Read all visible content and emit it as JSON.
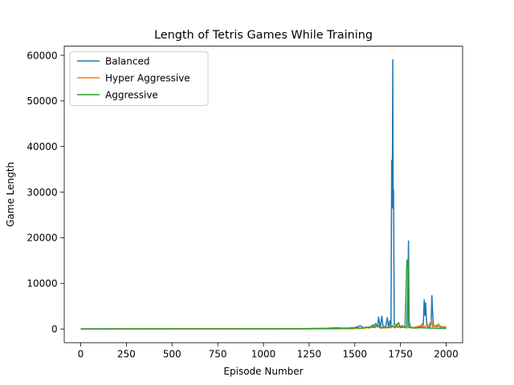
{
  "chart_data": {
    "type": "line",
    "title": "Length of Tetris Games While Training",
    "xlabel": "Episode Number",
    "ylabel": "Game Length",
    "xlim": [
      -90,
      2090
    ],
    "ylim": [
      -3000,
      62000
    ],
    "x_ticks": [
      0,
      250,
      500,
      750,
      1000,
      1250,
      1500,
      1750,
      2000
    ],
    "y_ticks": [
      0,
      10000,
      20000,
      30000,
      40000,
      50000,
      60000
    ],
    "grid": false,
    "legend_position": "top-left",
    "series": [
      {
        "name": "Balanced",
        "color": "#1f77b4",
        "points": [
          [
            0,
            20
          ],
          [
            300,
            30
          ],
          [
            600,
            40
          ],
          [
            900,
            50
          ],
          [
            1200,
            80
          ],
          [
            1350,
            150
          ],
          [
            1400,
            250
          ],
          [
            1450,
            150
          ],
          [
            1500,
            300
          ],
          [
            1530,
            700
          ],
          [
            1550,
            200
          ],
          [
            1580,
            500
          ],
          [
            1600,
            300
          ],
          [
            1615,
            1200
          ],
          [
            1625,
            400
          ],
          [
            1630,
            2600
          ],
          [
            1640,
            300
          ],
          [
            1648,
            2800
          ],
          [
            1655,
            400
          ],
          [
            1670,
            600
          ],
          [
            1678,
            2500
          ],
          [
            1685,
            300
          ],
          [
            1692,
            1800
          ],
          [
            1698,
            500
          ],
          [
            1702,
            37000
          ],
          [
            1705,
            26500
          ],
          [
            1708,
            59000
          ],
          [
            1710,
            27000
          ],
          [
            1712,
            30500
          ],
          [
            1716,
            1200
          ],
          [
            1722,
            800
          ],
          [
            1730,
            400
          ],
          [
            1745,
            600
          ],
          [
            1755,
            300
          ],
          [
            1770,
            500
          ],
          [
            1785,
            300
          ],
          [
            1790,
            9000
          ],
          [
            1794,
            19300
          ],
          [
            1797,
            1500
          ],
          [
            1805,
            400
          ],
          [
            1820,
            300
          ],
          [
            1840,
            500
          ],
          [
            1860,
            400
          ],
          [
            1875,
            800
          ],
          [
            1880,
            6400
          ],
          [
            1884,
            3000
          ],
          [
            1888,
            5700
          ],
          [
            1892,
            2000
          ],
          [
            1897,
            500
          ],
          [
            1910,
            300
          ],
          [
            1918,
            1500
          ],
          [
            1922,
            7300
          ],
          [
            1925,
            4500
          ],
          [
            1930,
            800
          ],
          [
            1945,
            500
          ],
          [
            1960,
            700
          ],
          [
            1980,
            400
          ],
          [
            1995,
            300
          ],
          [
            2000,
            200
          ]
        ]
      },
      {
        "name": "Hyper Aggressive",
        "color": "#ff7f0e",
        "points": [
          [
            0,
            10
          ],
          [
            500,
            15
          ],
          [
            1000,
            20
          ],
          [
            1400,
            40
          ],
          [
            1500,
            80
          ],
          [
            1560,
            200
          ],
          [
            1600,
            700
          ],
          [
            1610,
            300
          ],
          [
            1620,
            900
          ],
          [
            1640,
            200
          ],
          [
            1700,
            300
          ],
          [
            1710,
            900
          ],
          [
            1720,
            200
          ],
          [
            1730,
            1100
          ],
          [
            1740,
            300
          ],
          [
            1760,
            800
          ],
          [
            1780,
            200
          ],
          [
            1800,
            400
          ],
          [
            1820,
            300
          ],
          [
            1860,
            700
          ],
          [
            1870,
            1200
          ],
          [
            1875,
            300
          ],
          [
            1890,
            700
          ],
          [
            1900,
            400
          ],
          [
            1915,
            1600
          ],
          [
            1920,
            1900
          ],
          [
            1925,
            500
          ],
          [
            1940,
            600
          ],
          [
            1950,
            900
          ],
          [
            1960,
            1100
          ],
          [
            1965,
            400
          ],
          [
            1980,
            300
          ],
          [
            1990,
            600
          ],
          [
            2000,
            300
          ]
        ]
      },
      {
        "name": "Aggressive",
        "color": "#2ca02c",
        "points": [
          [
            0,
            10
          ],
          [
            400,
            15
          ],
          [
            800,
            20
          ],
          [
            1200,
            30
          ],
          [
            1400,
            100
          ],
          [
            1450,
            200
          ],
          [
            1480,
            100
          ],
          [
            1500,
            300
          ],
          [
            1540,
            150
          ],
          [
            1560,
            400
          ],
          [
            1580,
            200
          ],
          [
            1600,
            900
          ],
          [
            1610,
            300
          ],
          [
            1625,
            1000
          ],
          [
            1640,
            250
          ],
          [
            1660,
            400
          ],
          [
            1680,
            300
          ],
          [
            1700,
            600
          ],
          [
            1720,
            300
          ],
          [
            1740,
            1400
          ],
          [
            1750,
            300
          ],
          [
            1760,
            500
          ],
          [
            1775,
            300
          ],
          [
            1785,
            15100
          ],
          [
            1788,
            14000
          ],
          [
            1791,
            14800
          ],
          [
            1794,
            600
          ],
          [
            1800,
            300
          ],
          [
            1830,
            200
          ],
          [
            1860,
            300
          ],
          [
            1900,
            200
          ],
          [
            1950,
            150
          ],
          [
            2000,
            100
          ]
        ]
      }
    ]
  }
}
